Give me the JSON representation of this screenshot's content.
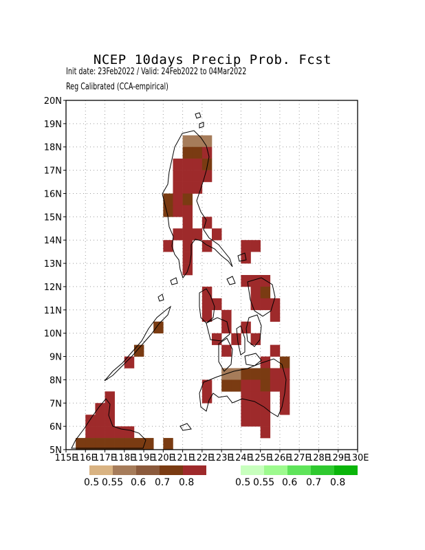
{
  "header": {
    "title": "NCEP 10days Precip Prob. Fcst",
    "init_valid": "Init date: 23Feb2022 / Valid: 24Feb2022 to 04Mar2022",
    "method": "Reg Calibrated (CCA-empirical)"
  },
  "map": {
    "lat_labels": [
      "20N",
      "19N",
      "18N",
      "17N",
      "16N",
      "15N",
      "14N",
      "13N",
      "12N",
      "11N",
      "10N",
      "9N",
      "8N",
      "7N",
      "6N",
      "5N"
    ],
    "lon_labels": [
      "115E",
      "116E",
      "117E",
      "118E",
      "119E",
      "120E",
      "121E",
      "122E",
      "123E",
      "124E",
      "125E",
      "126E",
      "127E",
      "128E",
      "129E",
      "130E"
    ],
    "lat_range": [
      5,
      20
    ],
    "lon_range": [
      115,
      130
    ],
    "grid": "dotted"
  },
  "legend": {
    "dry_colors": [
      "#d9b382",
      "#a67c5a",
      "#8b5a3c",
      "#7a3b12",
      "#9e2a2b"
    ],
    "dry_labels": [
      "0.5",
      "0.55",
      "0.6",
      "0.7",
      "0.8"
    ],
    "wet_colors": [
      "#c8ffbe",
      "#9dfa8e",
      "#5fe45a",
      "#2fc92f",
      "#0ab50a"
    ],
    "wet_labels": [
      "0.5",
      "0.55",
      "0.6",
      "0.7",
      "0.8"
    ]
  }
}
